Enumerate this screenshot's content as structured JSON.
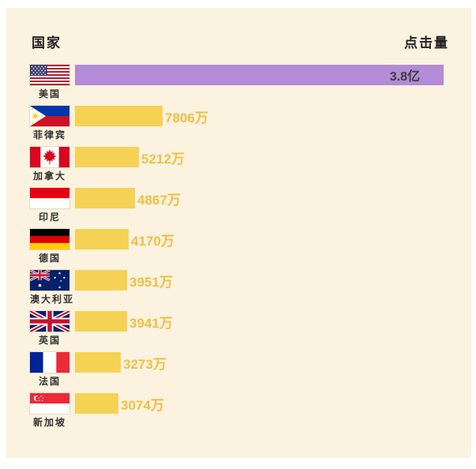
{
  "chart": {
    "header_left": "国家",
    "header_right": "点击量",
    "background_color": "#fbf2df",
    "bar_color_default": "#f6d254",
    "bar_color_highlight": "#b38bd6",
    "value_label_color": "#eec043",
    "highlight_value_text_color": "#3d3d3d"
  },
  "chart_data": {
    "type": "bar",
    "orientation": "horizontal",
    "title": "",
    "xlabel": "点击量",
    "ylabel": "国家",
    "categories": [
      "美国",
      "菲律宾",
      "加拿大",
      "印尼",
      "德国",
      "澳大利亚",
      "英国",
      "法国",
      "新加坡"
    ],
    "values_wan": [
      38000,
      7806,
      5212,
      4867,
      4170,
      3951,
      3941,
      3273,
      3074
    ],
    "value_labels": [
      "3.8亿",
      "7806万",
      "5212万",
      "4867万",
      "4170万",
      "3951万",
      "3941万",
      "3273万",
      "3074万"
    ],
    "flags": [
      "usa",
      "philippines",
      "canada",
      "indonesia",
      "germany",
      "australia",
      "uk",
      "france",
      "singapore"
    ],
    "highlight_index": 0,
    "legend": "none",
    "grid": false
  }
}
